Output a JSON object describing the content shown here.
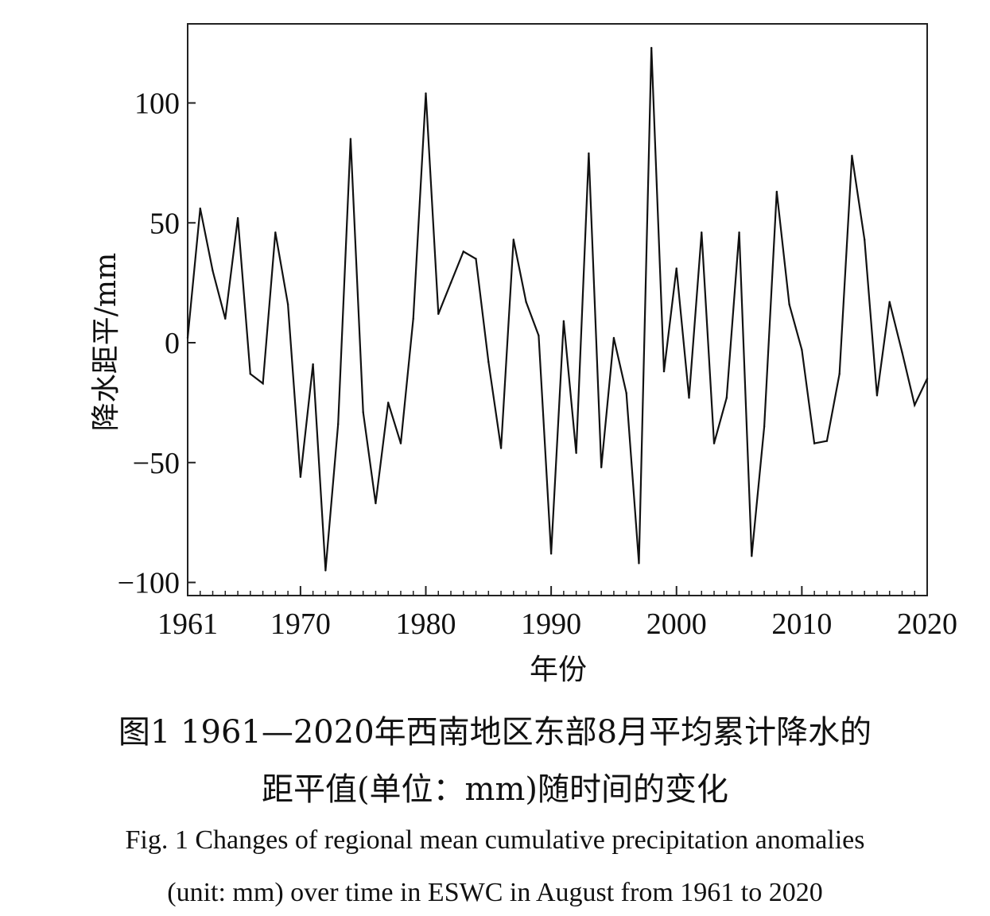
{
  "chart_data": {
    "type": "line",
    "xlabel": "年份",
    "ylabel": "降水距平/mm",
    "xlim": [
      1961,
      2020
    ],
    "ylim": [
      -105,
      133
    ],
    "xticks": [
      1961,
      1970,
      1980,
      1990,
      2000,
      2010,
      2020
    ],
    "yticks": [
      -100,
      -50,
      0,
      50,
      100
    ],
    "ytick_labels": [
      "−100",
      "−50",
      "0",
      "50",
      "100"
    ],
    "grid": false,
    "series": [
      {
        "x": [
          1961,
          1962,
          1963,
          1964,
          1965,
          1966,
          1967,
          1968,
          1969,
          1970,
          1971,
          1972,
          1973,
          1974,
          1975,
          1976,
          1977,
          1978,
          1979,
          1980,
          1981,
          1982,
          1983,
          1984,
          1985,
          1986,
          1987,
          1988,
          1989,
          1990,
          1991,
          1992,
          1993,
          1994,
          1995,
          1996,
          1997,
          1998,
          1999,
          2000,
          2001,
          2002,
          2003,
          2004,
          2005,
          2006,
          2007,
          2008,
          2009,
          2010,
          2011,
          2012,
          2013,
          2014,
          2015,
          2016,
          2017,
          2018,
          2019,
          2020
        ],
        "values": [
          2,
          56,
          30,
          10,
          52,
          -13,
          -17,
          46,
          16,
          -56,
          -9,
          -95,
          -34,
          85,
          -29,
          -67,
          -25,
          -42,
          10,
          104,
          12,
          25,
          38,
          35,
          -8,
          -44,
          43,
          17,
          3,
          -88,
          9,
          -46,
          79,
          -52,
          2,
          -21,
          -92,
          123,
          -12,
          31,
          -23,
          46,
          -42,
          -23,
          46,
          -89,
          -35,
          63,
          16,
          -3,
          -42,
          -41,
          -13,
          78,
          43,
          -22,
          17,
          -4,
          -26,
          -15
        ]
      }
    ],
    "line_color": "#111111"
  },
  "caption": {
    "cn_line1": "图1 1961—2020年西南地区东部8月平均累计降水的",
    "cn_line2": "距平值(单位：mm)随时间的变化",
    "en_line1": "Fig. 1 Changes of regional mean cumulative precipitation anomalies",
    "en_line2": "(unit: mm) over time in ESWC in August from 1961 to 2020"
  }
}
